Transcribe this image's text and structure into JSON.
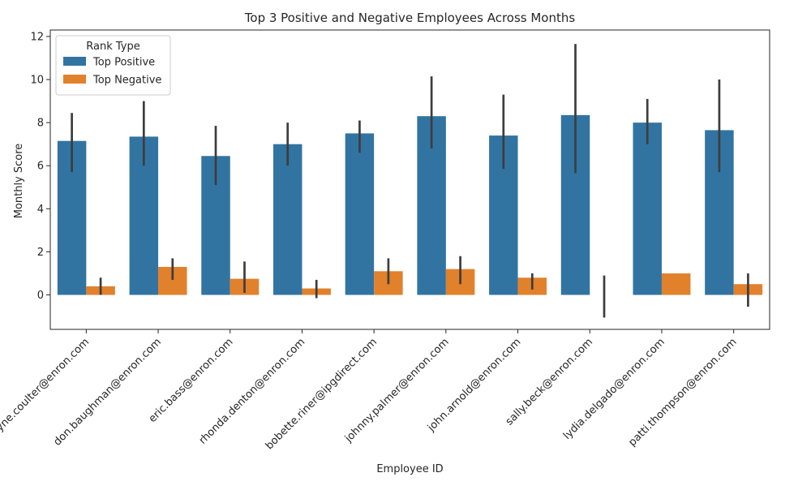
{
  "chart_data": {
    "type": "bar",
    "title": "Top 3 Positive and Negative Employees Across Months",
    "xlabel": "Employee ID",
    "ylabel": "Monthly Score",
    "ylim": [
      -1.6,
      12.3
    ],
    "yticks": [
      0,
      2,
      4,
      6,
      8,
      10,
      12
    ],
    "grid": false,
    "legend_position": "top-left",
    "legend_title": "Rank Type",
    "categories": [
      "kayne.coulter@enron.com",
      "don.baughman@enron.com",
      "eric.bass@enron.com",
      "rhonda.denton@enron.com",
      "bobette.riner@ipgdirect.com",
      "johnny.palmer@enron.com",
      "john.arnold@enron.com",
      "sally.beck@enron.com",
      "lydia.delgado@enron.com",
      "patti.thompson@enron.com"
    ],
    "series": [
      {
        "name": "Top Positive",
        "color": "#3274a1",
        "values": [
          7.15,
          7.35,
          6.45,
          7.0,
          7.5,
          8.3,
          7.4,
          8.35,
          8.0,
          7.65
        ],
        "ci_low": [
          5.7,
          6.0,
          5.1,
          6.0,
          6.6,
          6.8,
          5.85,
          5.65,
          7.0,
          5.7
        ],
        "ci_high": [
          8.45,
          9.0,
          7.85,
          8.0,
          8.1,
          10.15,
          9.3,
          11.65,
          9.1,
          10.0
        ]
      },
      {
        "name": "Top Negative",
        "color": "#e1812c",
        "values": [
          0.4,
          1.3,
          0.75,
          0.3,
          1.1,
          1.2,
          0.8,
          0.0,
          1.0,
          0.5
        ],
        "ci_low": [
          0.0,
          0.7,
          0.1,
          -0.15,
          0.5,
          0.5,
          0.25,
          -1.05,
          1.0,
          -0.55
        ],
        "ci_high": [
          0.8,
          1.7,
          1.55,
          0.7,
          1.7,
          1.8,
          1.0,
          0.9,
          1.0,
          1.0
        ]
      }
    ]
  }
}
